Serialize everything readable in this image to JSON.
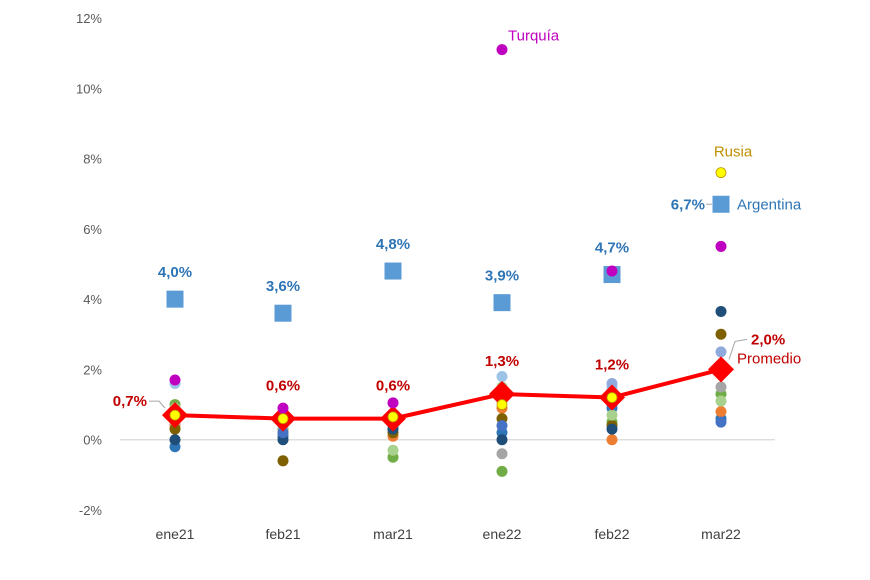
{
  "chart_data": {
    "type": "scatter",
    "title": "",
    "xlabel": "",
    "ylabel": "",
    "categories": [
      "ene21",
      "feb21",
      "mar21",
      "ene22",
      "feb22",
      "mar22"
    ],
    "ylim": [
      -2,
      12
    ],
    "yticks": [
      -2,
      0,
      2,
      4,
      6,
      8,
      10,
      12
    ],
    "ytick_labels": [
      "-2%",
      "0%",
      "2%",
      "4%",
      "6%",
      "8%",
      "10%",
      "12%"
    ],
    "colors": {
      "argentina": "#5b9bd5",
      "argentina_label": "#2e75b6",
      "promedio": "#ff0000",
      "promedio_label": "#c00000",
      "turquia": "#c000c0",
      "rusia": "#ffff00",
      "rusia_label": "#bf9000",
      "axis": "#d9d9d9"
    },
    "series": [
      {
        "name": "Argentina",
        "marker": "square",
        "values": [
          4.0,
          3.6,
          4.8,
          3.9,
          4.7,
          6.7
        ],
        "labels": [
          "4,0%",
          "3,6%",
          "4,8%",
          "3,9%",
          "4,7%",
          "6,7%"
        ]
      },
      {
        "name": "Promedio",
        "marker": "diamond-line",
        "values": [
          0.7,
          0.6,
          0.6,
          1.3,
          1.2,
          2.0
        ],
        "labels": [
          "0,7%",
          "0,6%",
          "0,6%",
          "1,3%",
          "1,2%",
          "2,0%"
        ]
      },
      {
        "name": "Turquía",
        "marker": "circle",
        "color": "#c000c0",
        "values": [
          1.7,
          0.9,
          1.05,
          11.1,
          4.8,
          5.5
        ]
      },
      {
        "name": "Rusia",
        "marker": "circle",
        "color": "#ffff00",
        "values": [
          0.7,
          0.6,
          0.65,
          1.0,
          1.2,
          7.6
        ]
      }
    ],
    "other_points": [
      {
        "color": "#2e75b6",
        "values": [
          -0.2,
          0.1,
          0.4,
          0.2,
          0.9,
          0.6
        ]
      },
      {
        "color": "#70ad47",
        "values": [
          1.0,
          0.3,
          -0.5,
          -0.9,
          0.5,
          1.3
        ]
      },
      {
        "color": "#ed7d31",
        "values": [
          0.4,
          0.2,
          0.1,
          0.9,
          0.0,
          0.8
        ]
      },
      {
        "color": "#a5a5a5",
        "values": [
          0.5,
          0.8,
          0.3,
          -0.4,
          1.4,
          1.5
        ]
      },
      {
        "color": "#9dc3e6",
        "values": [
          1.6,
          0.7,
          0.7,
          1.8,
          1.5,
          1.9
        ]
      },
      {
        "color": "#7f6000",
        "values": [
          0.3,
          -0.6,
          0.2,
          0.6,
          0.4,
          3.0
        ]
      },
      {
        "color": "#8faadc",
        "values": [
          0.8,
          0.4,
          0.5,
          1.1,
          1.6,
          2.5
        ]
      },
      {
        "color": "#1f4e79",
        "values": [
          0.0,
          0.0,
          0.3,
          0.0,
          0.3,
          3.65
        ]
      },
      {
        "color": "#a9d18e",
        "values": [
          0.9,
          0.5,
          -0.3,
          1.5,
          0.7,
          1.1
        ]
      },
      {
        "color": "#4472c4",
        "values": [
          0.6,
          0.2,
          0.5,
          0.4,
          1.0,
          0.5
        ]
      }
    ],
    "annotations": {
      "argentina_name": "Argentina",
      "promedio_name": "Promedio",
      "turquia_name": "Turquía",
      "rusia_name": "Rusia"
    }
  }
}
